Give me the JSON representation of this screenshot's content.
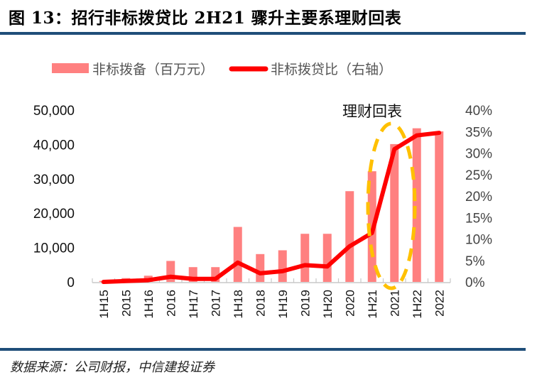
{
  "figure": {
    "title": "图 13：招行非标拨贷比 2H21 骤升主要系理财回表",
    "source": "数据来源：公司财报，中信建投证券"
  },
  "colors": {
    "bar": "#ff8080",
    "line": "#ff0000",
    "annotation_ellipse": "#ffc000",
    "rule": "#1f4e79",
    "axis": "#c8c8c8"
  },
  "chart_data": {
    "type": "bar",
    "title": "招行非标拨贷比 2H21 骤升主要系理财回表",
    "xlabel": "",
    "ylabel": "",
    "categories": [
      "1H15",
      "2015",
      "1H16",
      "2016",
      "1H17",
      "2017",
      "1H18",
      "2018",
      "1H19",
      "2019",
      "1H20",
      "2020",
      "1H21",
      "2021",
      "1H22",
      "2022"
    ],
    "series": [
      {
        "name": "非标拨备（百万元）",
        "type": "bar",
        "axis": "left",
        "values": [
          300,
          1100,
          1800,
          6100,
          4300,
          4300,
          16000,
          8100,
          9200,
          14000,
          14000,
          26400,
          32200,
          40100,
          44700,
          43800
        ]
      },
      {
        "name": "非标拨贷比（右轴）",
        "type": "line",
        "axis": "right",
        "values": [
          0.0,
          0.2,
          0.4,
          1.2,
          0.7,
          0.7,
          4.5,
          2.0,
          2.5,
          3.9,
          3.6,
          8.3,
          11.4,
          30.9,
          34.1,
          34.7
        ]
      }
    ],
    "ylim_left": [
      0,
      50000
    ],
    "yticks_left": [
      "0",
      "10,000",
      "20,000",
      "30,000",
      "40,000",
      "50,000"
    ],
    "ylim_right": [
      0,
      40
    ],
    "yticks_right": [
      "0%",
      "5%",
      "10%",
      "15%",
      "20%",
      "25%",
      "30%",
      "35%",
      "40%"
    ],
    "grid": false,
    "legend": {
      "position": "top",
      "entries": [
        "非标拨备（百万元）",
        "非标拨贷比（右轴）"
      ]
    },
    "annotations": [
      {
        "text": "理财回表",
        "shape": "dashed-ellipse",
        "around_categories": [
          "1H21",
          "2021"
        ]
      }
    ]
  }
}
